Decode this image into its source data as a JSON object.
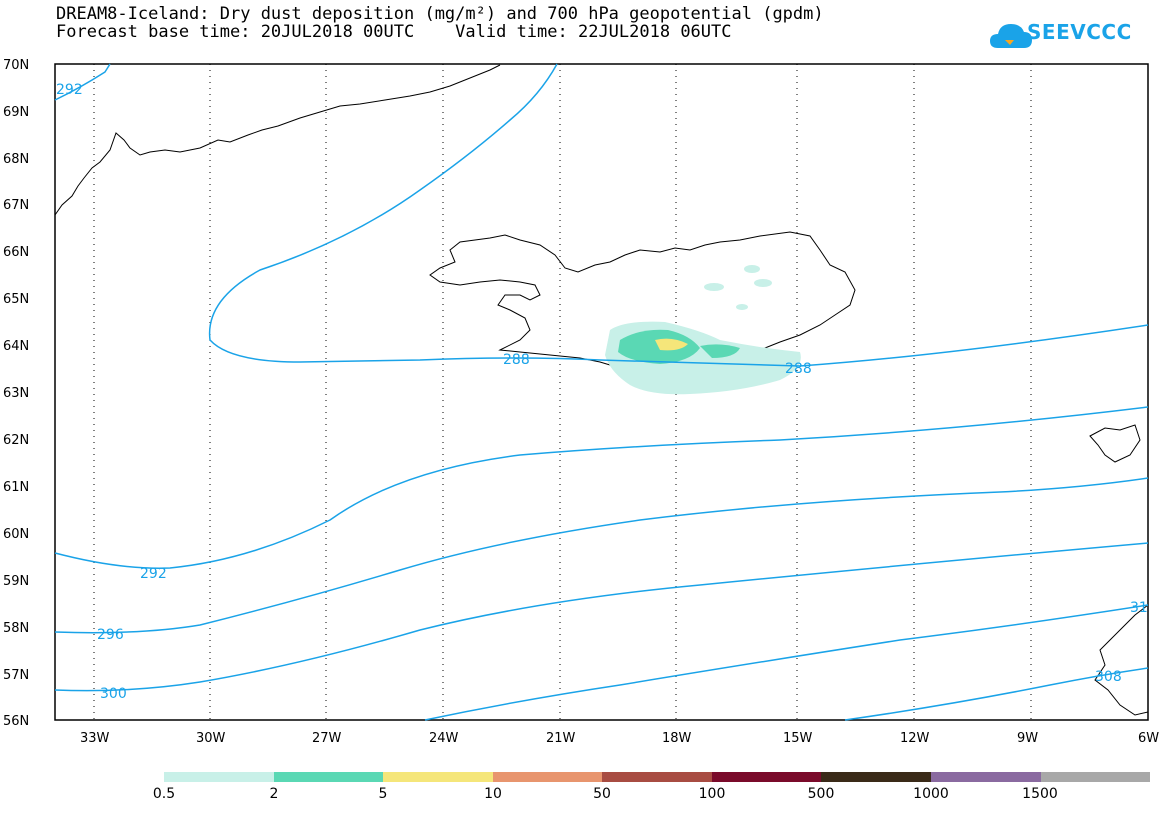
{
  "title": {
    "line1": "DREAM8-Iceland: Dry dust deposition (mg/m²) and 700 hPa geopotential (gpdm)",
    "line2": "Forecast base time: 20JUL2018 00UTC    Valid time: 22JUL2018 06UTC"
  },
  "logo": {
    "text": "SEEVCCC",
    "color": "#1aa3e8"
  },
  "map": {
    "lat_labels": [
      "70N",
      "69N",
      "68N",
      "67N",
      "66N",
      "65N",
      "64N",
      "63N",
      "62N",
      "61N",
      "60N",
      "59N",
      "58N",
      "57N",
      "56N"
    ],
    "lon_labels": [
      "33W",
      "30W",
      "27W",
      "24W",
      "21W",
      "18W",
      "15W",
      "12W",
      "9W",
      "6W"
    ],
    "lat_range": [
      56,
      70
    ],
    "lon_range": [
      -34.2,
      -6
    ],
    "grid": "dotted",
    "contour_color": "#1aa3e8",
    "contour_labels": [
      "292",
      "288",
      "288",
      "292",
      "296",
      "300",
      "308",
      "31"
    ]
  },
  "legend": {
    "labels": [
      "0.5",
      "2",
      "5",
      "10",
      "50",
      "100",
      "500",
      "1000",
      "1500"
    ],
    "colors": [
      "#c8f0e8",
      "#5ad8b4",
      "#f5e67a",
      "#e8956e",
      "#a84c42",
      "#7a0a2a",
      "#3a2a18",
      "#8a6aa0",
      "#a8a8a8"
    ]
  }
}
